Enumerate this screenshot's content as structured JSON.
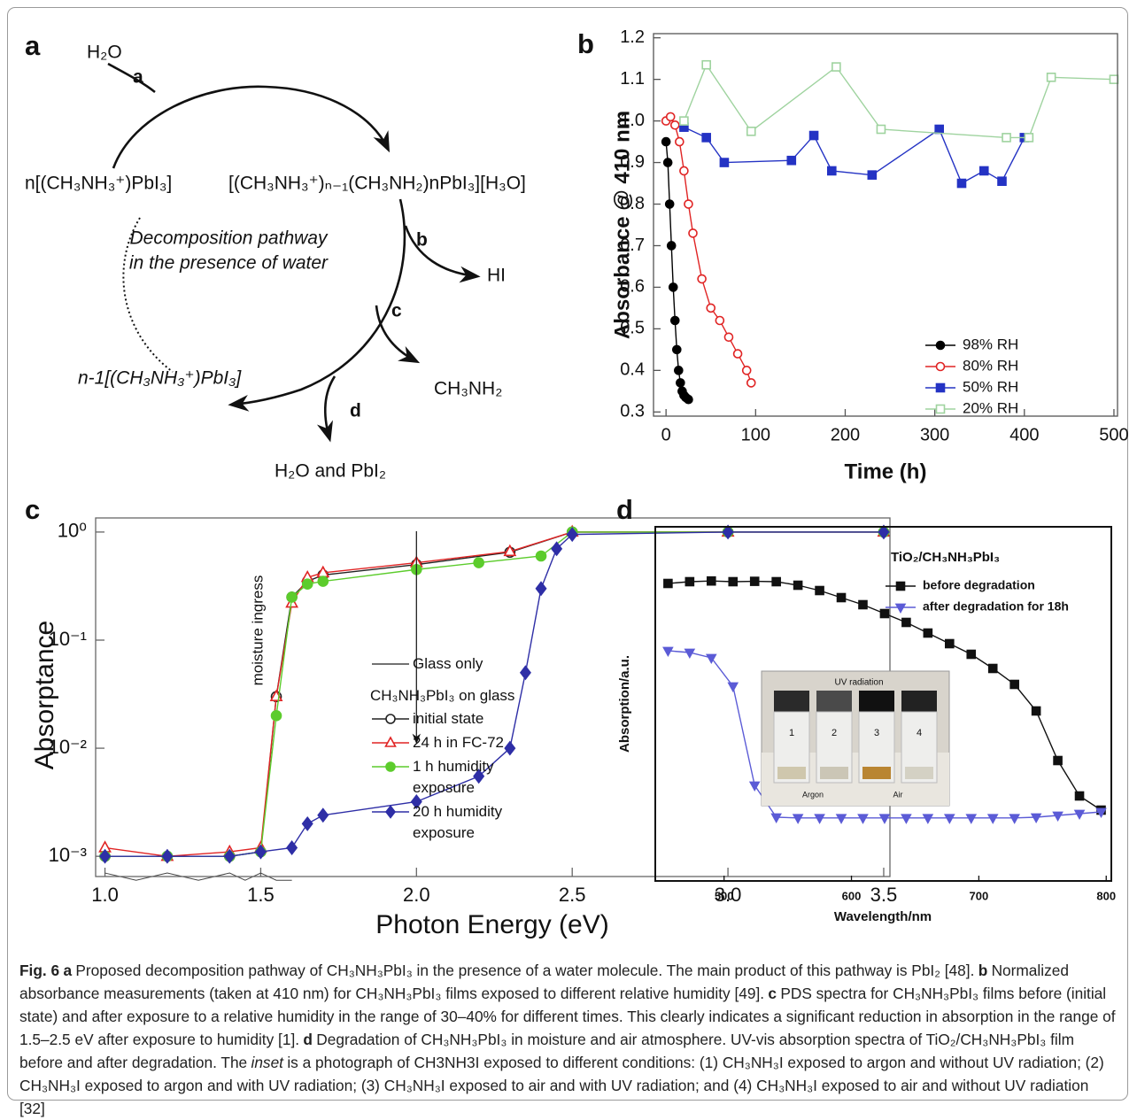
{
  "panel_a": {
    "label": "a",
    "water": "H₂O",
    "step_a": "a",
    "reactant": "n[(CH₃NH₃⁺)PbI₃]",
    "intermediate": "[(CH₃NH₃⁺)ₙ₋₁(CH₃NH₂)nPbI₃][H₃O]",
    "center_line1": "Decomposition pathway",
    "center_line2": "in the presence of water",
    "step_b": "b",
    "product_b": "HI",
    "step_c": "c",
    "product_c": "CH₃NH₂",
    "remainder": "n-1[(CH₃NH₃⁺)PbI₃]",
    "step_d": "d",
    "product_d": "H₂O and PbI₂"
  },
  "chart_data": [
    {
      "type": "line",
      "panel_label": "b",
      "xlabel": "Time (h)",
      "ylabel": "Absorbance @ 410 nm",
      "xlim": [
        -14,
        504
      ],
      "ylim": [
        0.29,
        1.21
      ],
      "xticks": [
        0,
        100,
        200,
        300,
        400,
        500
      ],
      "yticks": [
        0.3,
        0.4,
        0.5,
        0.6,
        0.7,
        0.8,
        0.9,
        {
          "value": 1,
          "label": "1.0"
        },
        1.1,
        1.2
      ],
      "legend": "lower right",
      "series": [
        {
          "name": "98% RH",
          "color": "#000000",
          "marker": "circle",
          "filled": true,
          "x": [
            0,
            2,
            4,
            6,
            8,
            10,
            12,
            14,
            16,
            18,
            20,
            22,
            25
          ],
          "values": [
            0.95,
            0.9,
            0.8,
            0.7,
            0.6,
            0.52,
            0.45,
            0.4,
            0.37,
            0.35,
            0.34,
            0.335,
            0.33
          ]
        },
        {
          "name": "80% RH",
          "color": "#e02424",
          "marker": "circle",
          "filled": false,
          "x": [
            0,
            5,
            10,
            15,
            20,
            25,
            30,
            40,
            50,
            60,
            70,
            80,
            90,
            95
          ],
          "values": [
            1.0,
            1.01,
            0.99,
            0.95,
            0.88,
            0.8,
            0.73,
            0.62,
            0.55,
            0.52,
            0.48,
            0.44,
            0.4,
            0.37
          ]
        },
        {
          "name": "50% RH",
          "color": "#2433c4",
          "marker": "square",
          "filled": true,
          "x": [
            20,
            45,
            65,
            140,
            165,
            185,
            230,
            305,
            330,
            355,
            375,
            400
          ],
          "values": [
            0.985,
            0.96,
            0.9,
            0.905,
            0.965,
            0.88,
            0.87,
            0.98,
            0.85,
            0.88,
            0.855,
            0.96
          ]
        },
        {
          "name": "20% RH",
          "color": "#9fd39f",
          "marker": "square",
          "filled": false,
          "x": [
            20,
            45,
            95,
            190,
            240,
            380,
            405,
            430,
            500
          ],
          "values": [
            1.0,
            1.135,
            0.975,
            1.13,
            0.98,
            0.96,
            0.96,
            1.105,
            1.1
          ]
        }
      ]
    },
    {
      "type": "line",
      "panel_label": "c",
      "xlabel": "Photon Energy (eV)",
      "ylabel": "Absorptance",
      "ylog": true,
      "xlim": [
        0.97,
        3.52
      ],
      "ylim": [
        0.00065,
        1.35
      ],
      "xticks": [
        {
          "value": 1,
          "label": "1.0"
        },
        1.5,
        {
          "value": 2,
          "label": "2.0"
        },
        2.5,
        {
          "value": 3,
          "label": "3.0"
        },
        3.5
      ],
      "yticks": [
        {
          "value": 0.001,
          "label": "10⁻³"
        },
        {
          "value": 0.01,
          "label": "10⁻²"
        },
        {
          "value": 0.1,
          "label": "10⁻¹"
        },
        {
          "value": 1,
          "label": "10⁰"
        }
      ],
      "annotation": "moisture ingress",
      "legend_title": "CH₃NH₃PbI₃ on glass",
      "series": [
        {
          "name": "Glass only",
          "color": "#444444",
          "marker": "none",
          "filled": false,
          "x": [
            1.0,
            1.1,
            1.2,
            1.3,
            1.4,
            1.45,
            1.5,
            1.55,
            1.6
          ],
          "values": [
            0.0007,
            0.0006,
            0.0007,
            0.0006,
            0.0007,
            0.0006,
            0.0007,
            0.0006,
            0.0006
          ]
        },
        {
          "name": "initial state",
          "color": "#222222",
          "marker": "circle",
          "filled": false,
          "x": [
            1.0,
            1.2,
            1.4,
            1.5,
            1.55,
            1.6,
            1.65,
            1.7,
            2.0,
            2.3,
            2.5,
            3.0,
            3.5
          ],
          "values": [
            0.001,
            0.001,
            0.001,
            0.0011,
            0.03,
            0.25,
            0.35,
            0.4,
            0.5,
            0.65,
            1.0,
            1.0,
            1.0
          ]
        },
        {
          "name": "24 h in FC-72",
          "color": "#e02424",
          "marker": "triangle",
          "filled": false,
          "x": [
            1.0,
            1.2,
            1.4,
            1.5,
            1.55,
            1.6,
            1.65,
            1.7,
            2.0,
            2.3,
            2.5,
            3.0,
            3.5
          ],
          "values": [
            0.0012,
            0.001,
            0.0011,
            0.0012,
            0.03,
            0.22,
            0.38,
            0.42,
            0.52,
            0.66,
            1.0,
            1.0,
            1.0
          ]
        },
        {
          "name": "1 h humidity exposure",
          "color": "#5ccc2c",
          "marker": "circle",
          "filled": true,
          "x": [
            1.0,
            1.2,
            1.4,
            1.5,
            1.55,
            1.6,
            1.65,
            1.7,
            2.0,
            2.2,
            2.4,
            2.5,
            3.0,
            3.5
          ],
          "values": [
            0.001,
            0.001,
            0.001,
            0.0011,
            0.02,
            0.25,
            0.33,
            0.35,
            0.45,
            0.52,
            0.6,
            1.0,
            1.0,
            1.0
          ]
        },
        {
          "name": "20 h humidity exposure",
          "color": "#2e2ea6",
          "marker": "diamond",
          "filled": true,
          "x": [
            1.0,
            1.2,
            1.4,
            1.5,
            1.6,
            1.65,
            1.7,
            2.0,
            2.2,
            2.3,
            2.35,
            2.4,
            2.45,
            2.5,
            3.0,
            3.5
          ],
          "values": [
            0.001,
            0.001,
            0.001,
            0.0011,
            0.0012,
            0.002,
            0.0024,
            0.0032,
            0.0055,
            0.01,
            0.05,
            0.3,
            0.7,
            0.95,
            1.0,
            1.0
          ]
        }
      ]
    },
    {
      "type": "line",
      "panel_label": "d",
      "xlabel": "Wavelength/nm",
      "ylabel": "Absorption/a.u.",
      "xlim": [
        446,
        804
      ],
      "ylim": [
        0,
        1
      ],
      "xticks": [
        500,
        600,
        700,
        800
      ],
      "yticks": [],
      "annotation": "TiO₂/CH₃NH₃PbI₃",
      "inset": {
        "title": "UV radiation",
        "vials": [
          "1",
          "2",
          "3",
          "4"
        ],
        "groups": [
          "Argon",
          "Air"
        ]
      },
      "legend": "upper right",
      "series": [
        {
          "name": "before degradation",
          "color": "#111111",
          "marker": "square",
          "filled": true,
          "x": [
            456,
            473,
            490,
            507,
            524,
            541,
            558,
            575,
            592,
            609,
            626,
            643,
            660,
            677,
            694,
            711,
            728,
            745,
            762,
            779,
            796
          ],
          "values": [
            0.84,
            0.845,
            0.847,
            0.845,
            0.846,
            0.845,
            0.835,
            0.82,
            0.8,
            0.78,
            0.755,
            0.73,
            0.7,
            0.67,
            0.64,
            0.6,
            0.555,
            0.48,
            0.34,
            0.24,
            0.2
          ]
        },
        {
          "name": "after degradation for 18h",
          "color": "#5b5bd6",
          "marker": "tridown",
          "filled": true,
          "x": [
            456,
            473,
            490,
            507,
            524,
            541,
            558,
            575,
            592,
            609,
            626,
            643,
            660,
            677,
            694,
            711,
            728,
            745,
            762,
            779,
            796
          ],
          "values": [
            0.65,
            0.645,
            0.63,
            0.55,
            0.27,
            0.18,
            0.178,
            0.178,
            0.178,
            0.178,
            0.178,
            0.178,
            0.178,
            0.178,
            0.178,
            0.178,
            0.178,
            0.18,
            0.185,
            0.19,
            0.195
          ]
        }
      ]
    }
  ],
  "caption": {
    "label": "Fig. 6",
    "parts": [
      {
        "panel": "a",
        "text": "Proposed decomposition pathway of CH₃NH₃PbI₃ in the presence of a water molecule. The main product of this pathway is PbI₂ [48]."
      },
      {
        "panel": "b",
        "text": "Normalized absorbance measurements (taken at 410 nm) for CH₃NH₃PbI₃ films exposed to different relative humidity [49]."
      },
      {
        "panel": "c",
        "text": "PDS spectra for CH₃NH₃PbI₃ films before (initial state) and after exposure to a relative humidity in the range of 30–40% for different times. This clearly indicates a significant reduction in absorption in the range of 1.5–2.5 eV after exposure to humidity [1]."
      },
      {
        "panel": "d",
        "text": "Degradation of CH₃NH₃PbI₃ in moisture and air atmosphere. UV-vis absorption spectra of TiO₂/CH₃NH₃PbI₃ film before and after degradation. The"
      },
      {
        "text": "inset",
        "italic": true
      },
      {
        "text": "is a photograph of CH3NH3I exposed to different conditions: (1) CH₃NH₃I exposed to argon and without UV radiation; (2) CH₃NH₃I exposed to argon and with UV radiation; (3) CH₃NH₃I exposed to air and with UV radiation; and (4) CH₃NH₃I exposed to air and without UV radiation [32]"
      }
    ]
  }
}
